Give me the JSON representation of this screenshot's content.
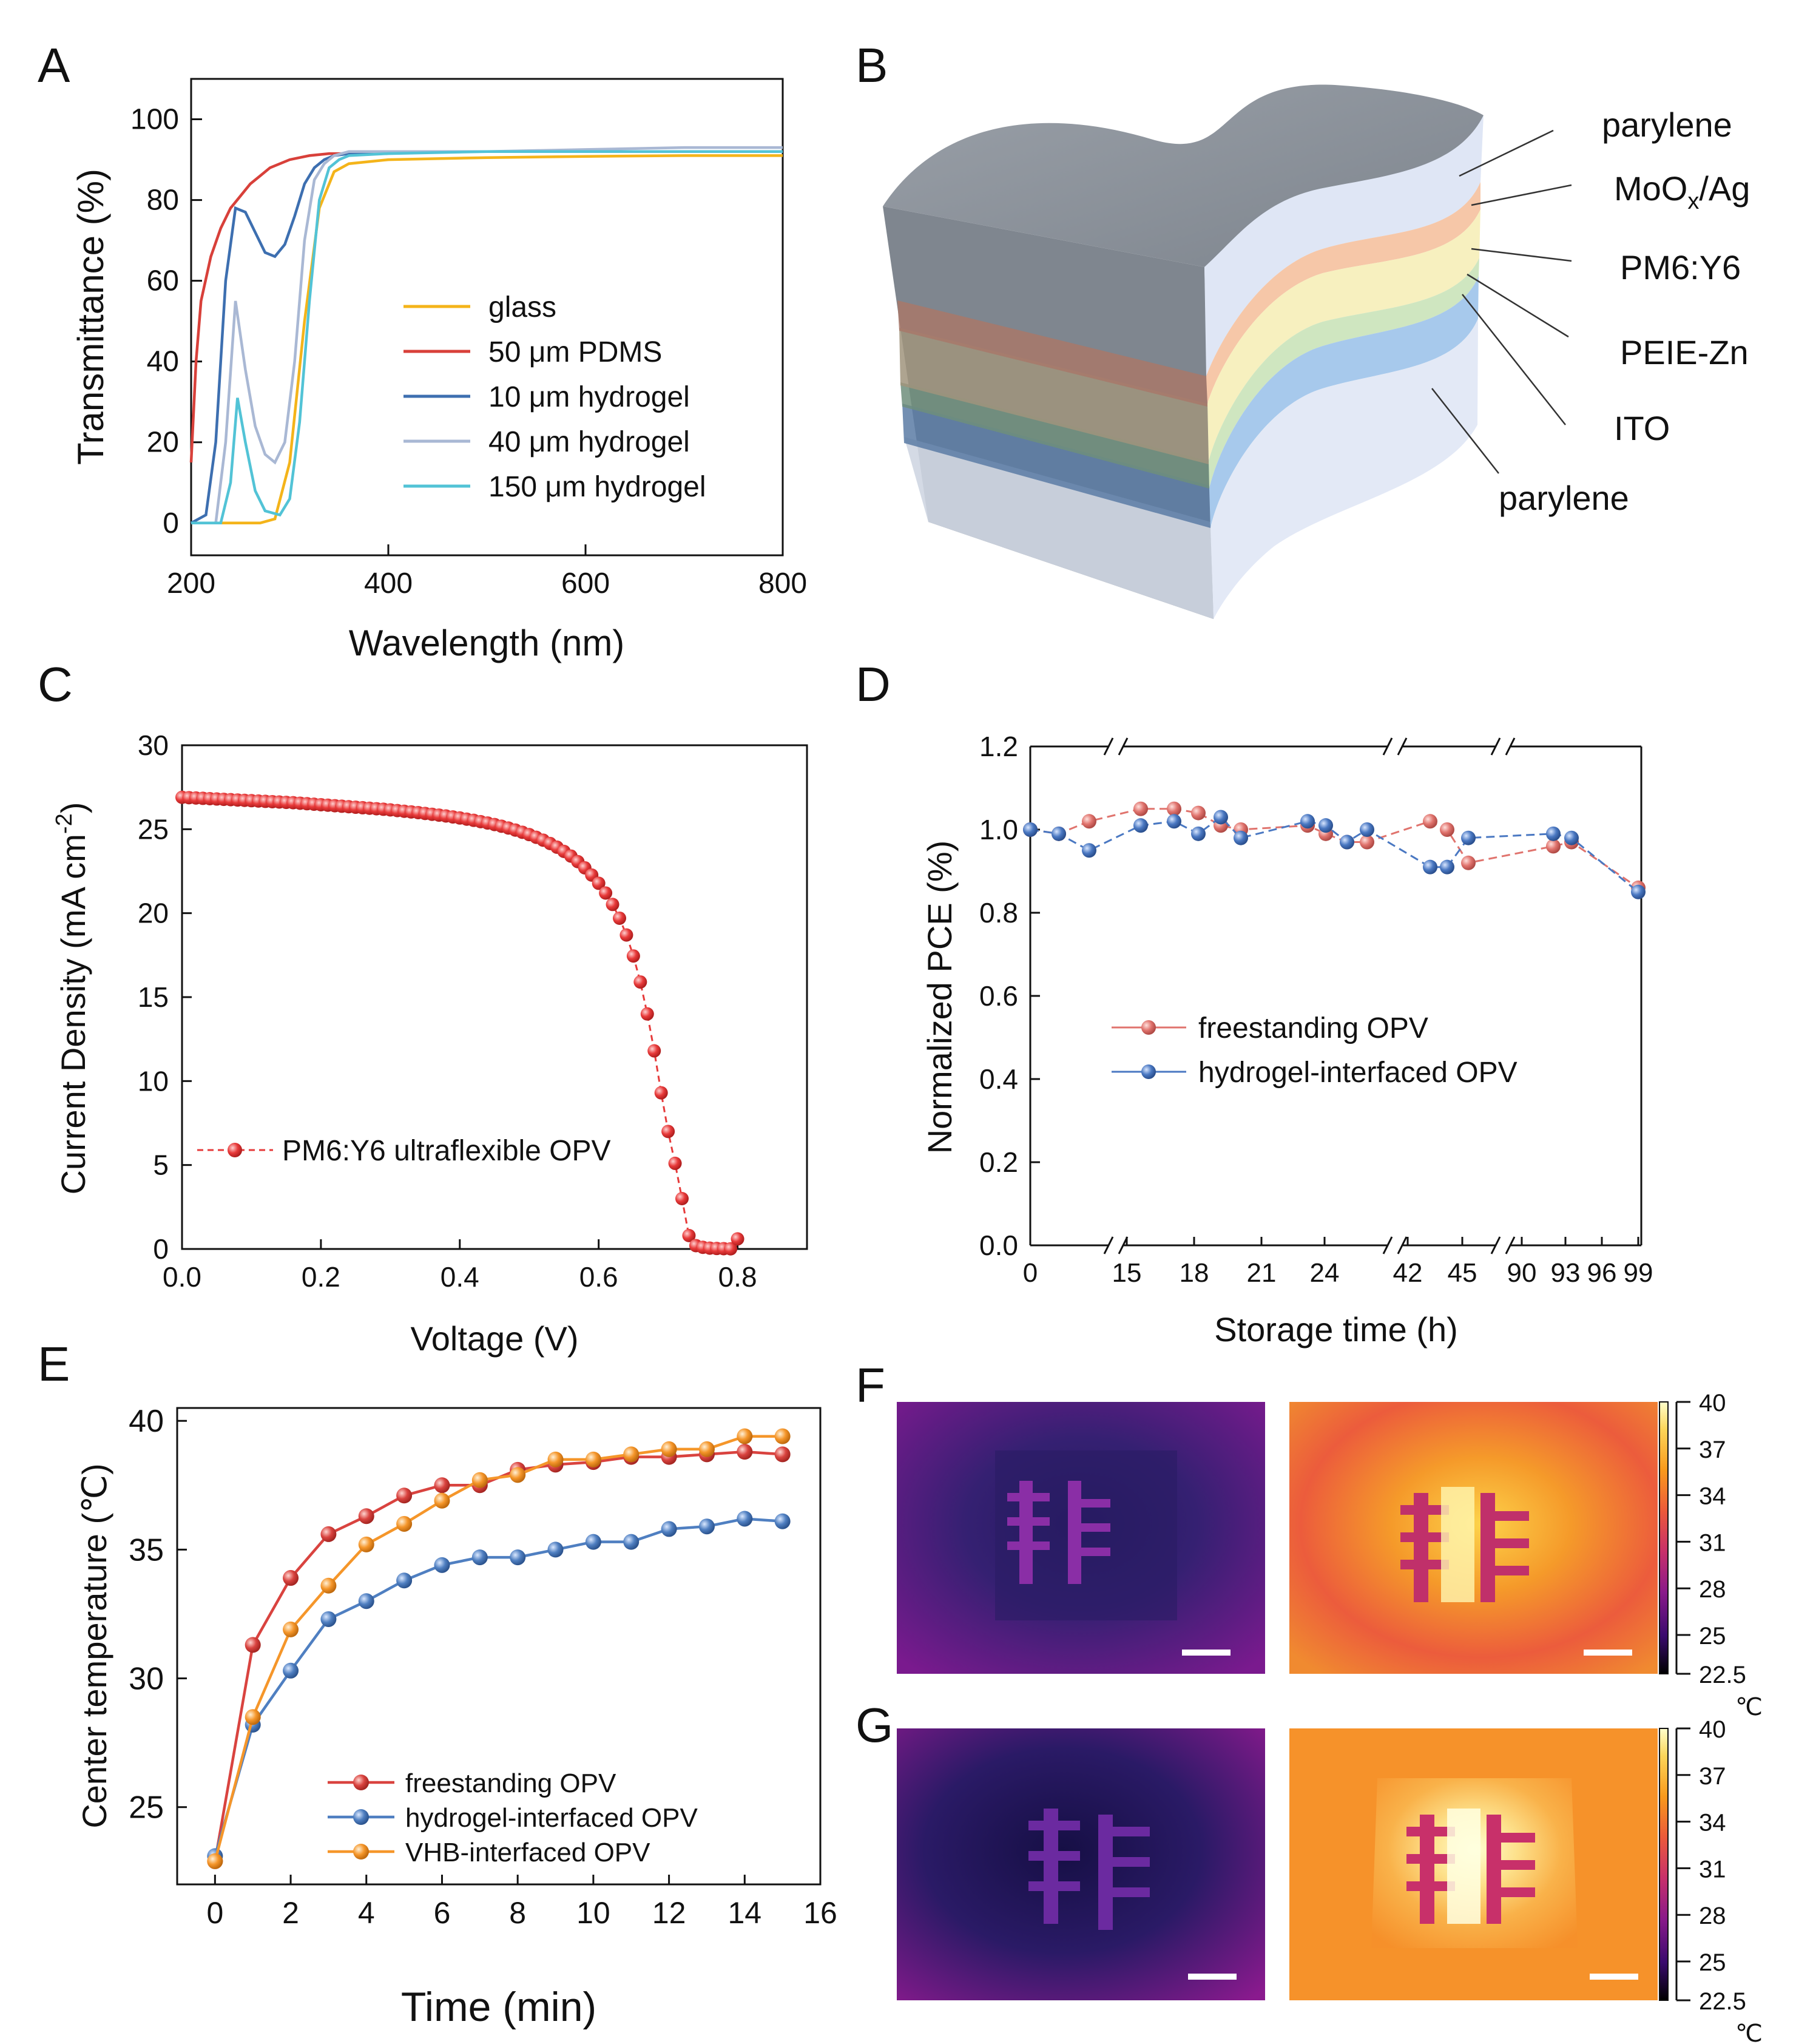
{
  "panels": {
    "A": "A",
    "B": "B",
    "C": "C",
    "D": "D",
    "E": "E",
    "F": "F",
    "G": "G"
  },
  "chart_data": [
    {
      "id": "A",
      "type": "line",
      "xlabel": "Wavelength (nm)",
      "ylabel": "Transmittance (%)",
      "xlim": [
        200,
        800
      ],
      "ylim": [
        -8,
        110
      ],
      "xticks": [
        200,
        400,
        600,
        800
      ],
      "yticks": [
        0,
        20,
        40,
        60,
        80,
        100
      ],
      "legend_position": "center-right",
      "series": [
        {
          "name": "glass",
          "color": "#f4b41a",
          "x": [
            200,
            240,
            270,
            285,
            300,
            315,
            330,
            345,
            360,
            400,
            500,
            600,
            700,
            800
          ],
          "y": [
            0,
            0,
            0,
            1,
            15,
            50,
            78,
            87,
            89,
            90,
            90.5,
            90.8,
            91,
            91
          ]
        },
        {
          "name": "50 μm PDMS",
          "color": "#d8403a",
          "x": [
            200,
            205,
            210,
            220,
            230,
            240,
            250,
            260,
            270,
            280,
            300,
            320,
            340,
            360,
            400,
            500,
            600,
            700,
            800
          ],
          "y": [
            15,
            40,
            55,
            66,
            73,
            78,
            81,
            84,
            86,
            88,
            90,
            91,
            91.5,
            91.5,
            92,
            92,
            92,
            92,
            92
          ]
        },
        {
          "name": "10 μm hydrogel",
          "color": "#3d6fb0",
          "x": [
            200,
            215,
            225,
            235,
            245,
            255,
            265,
            275,
            285,
            295,
            305,
            315,
            325,
            335,
            345,
            360,
            400,
            500,
            600,
            700,
            800
          ],
          "y": [
            0,
            2,
            20,
            60,
            78,
            77,
            72,
            67,
            66,
            69,
            76,
            84,
            88,
            90,
            91,
            91.5,
            92,
            92,
            92,
            92,
            92
          ]
        },
        {
          "name": "40 μm hydrogel",
          "color": "#a9b8d4",
          "x": [
            200,
            225,
            235,
            245,
            255,
            265,
            275,
            285,
            295,
            305,
            315,
            325,
            335,
            345,
            360,
            400,
            500,
            600,
            700,
            800
          ],
          "y": [
            0,
            0,
            20,
            55,
            38,
            24,
            17,
            15,
            20,
            40,
            70,
            85,
            89,
            91,
            92,
            92,
            92,
            92.5,
            93,
            93
          ]
        },
        {
          "name": "150 μm hydrogel",
          "color": "#52c3d6",
          "x": [
            200,
            230,
            240,
            247,
            255,
            265,
            275,
            290,
            300,
            310,
            320,
            330,
            340,
            350,
            360,
            400,
            500,
            600,
            700,
            800
          ],
          "y": [
            0,
            0,
            10,
            31,
            20,
            8,
            3,
            2,
            6,
            25,
            55,
            80,
            88,
            90,
            91,
            91.5,
            92,
            92,
            92,
            92
          ]
        }
      ]
    },
    {
      "id": "B",
      "type": "diagram",
      "layers": [
        {
          "label": "parylene",
          "color": "#dfe6f5"
        },
        {
          "label": "MoOx/Ag",
          "color": "#f6c7a8"
        },
        {
          "label": "PM6:Y6",
          "color": "#f7f0bf"
        },
        {
          "label": "PEIE-Zn",
          "color": "#cfe6c0"
        },
        {
          "label": "ITO",
          "color": "#a7c9ec"
        },
        {
          "label": "parylene",
          "color": "#dfe6f5"
        }
      ]
    },
    {
      "id": "C",
      "type": "scatter",
      "xlabel": "Voltage (V)",
      "ylabel": "Current Density (mA cm",
      "ylabel_sup": "-2",
      "ylabel_end": ")",
      "xlim": [
        0,
        0.9
      ],
      "ylim": [
        0,
        30
      ],
      "xticks": [
        "0.0",
        "0.2",
        "0.4",
        "0.6",
        "0.8"
      ],
      "yticks": [
        0,
        5,
        10,
        15,
        20,
        25,
        30
      ],
      "legend_position": "lower-left",
      "series": [
        {
          "name": "PM6:Y6 ultraflexible OPV",
          "color": "#e63a3a",
          "x": [
            0.0,
            0.01,
            0.02,
            0.03,
            0.04,
            0.05,
            0.06,
            0.07,
            0.08,
            0.09,
            0.1,
            0.11,
            0.12,
            0.13,
            0.14,
            0.15,
            0.16,
            0.17,
            0.18,
            0.19,
            0.2,
            0.21,
            0.22,
            0.23,
            0.24,
            0.25,
            0.26,
            0.27,
            0.28,
            0.29,
            0.3,
            0.31,
            0.32,
            0.33,
            0.34,
            0.35,
            0.36,
            0.37,
            0.38,
            0.39,
            0.4,
            0.41,
            0.42,
            0.43,
            0.44,
            0.45,
            0.46,
            0.47,
            0.48,
            0.49,
            0.5,
            0.51,
            0.52,
            0.53,
            0.54,
            0.55,
            0.56,
            0.57,
            0.58,
            0.59,
            0.6,
            0.61,
            0.62,
            0.63,
            0.64,
            0.65,
            0.66,
            0.67,
            0.68,
            0.69,
            0.7,
            0.71,
            0.72,
            0.73,
            0.74,
            0.75,
            0.76,
            0.77,
            0.78,
            0.79,
            0.8
          ],
          "y": [
            26.9,
            26.88,
            26.86,
            26.84,
            26.82,
            26.8,
            26.78,
            26.76,
            26.74,
            26.72,
            26.7,
            26.68,
            26.66,
            26.64,
            26.62,
            26.6,
            26.58,
            26.55,
            26.52,
            26.49,
            26.46,
            26.43,
            26.4,
            26.37,
            26.34,
            26.31,
            26.28,
            26.25,
            26.22,
            26.19,
            26.15,
            26.11,
            26.07,
            26.03,
            25.99,
            25.94,
            25.89,
            25.84,
            25.79,
            25.73,
            25.67,
            25.6,
            25.53,
            25.45,
            25.37,
            25.28,
            25.18,
            25.07,
            24.95,
            24.82,
            24.68,
            24.52,
            24.35,
            24.15,
            23.93,
            23.68,
            23.4,
            23.07,
            22.7,
            22.27,
            21.78,
            21.2,
            20.52,
            19.7,
            18.7,
            17.45,
            15.9,
            14.0,
            11.8,
            9.3,
            7.0,
            5.1,
            3.0,
            0.8,
            0.2,
            0.1,
            0.05,
            0.03,
            0.02,
            0.01,
            0.6
          ]
        }
      ]
    },
    {
      "id": "D",
      "type": "line",
      "xlabel": "Storage time (h)",
      "ylabel": "Normalized PCE (%)",
      "ylim": [
        0,
        1.2
      ],
      "yticks": [
        "0.0",
        "0.2",
        "0.4",
        "0.6",
        "0.8",
        "1.0",
        "1.2"
      ],
      "xtick_labels": [
        "0",
        "15",
        "18",
        "21",
        "24",
        "42",
        "45",
        "90",
        "93",
        "96",
        "99"
      ],
      "legend_position": "center",
      "series": [
        {
          "name": "freestanding OPV",
          "color": "#e0736d",
          "x": [
            "0",
            "1",
            "2",
            "16",
            "17",
            "18",
            "19",
            "20",
            "23",
            "24",
            "25",
            "26",
            "43",
            "44",
            "45",
            "92",
            "94",
            "99"
          ],
          "y": [
            1.0,
            0.99,
            1.02,
            1.05,
            1.05,
            1.04,
            1.01,
            1.0,
            1.01,
            0.99,
            0.97,
            0.97,
            1.02,
            1.0,
            0.92,
            0.96,
            0.97,
            0.86
          ]
        },
        {
          "name": "hydrogel-interfaced OPV",
          "color": "#4a78c2",
          "x": [
            "0",
            "1",
            "2",
            "16",
            "17",
            "18",
            "19",
            "20",
            "23",
            "24",
            "25",
            "26",
            "43",
            "44",
            "45",
            "92",
            "94",
            "99"
          ],
          "y": [
            1.0,
            0.99,
            0.95,
            1.01,
            1.02,
            0.99,
            1.03,
            0.98,
            1.02,
            1.01,
            0.97,
            1.0,
            0.91,
            0.91,
            0.98,
            0.99,
            0.98,
            0.85
          ]
        }
      ]
    },
    {
      "id": "E",
      "type": "line",
      "xlabel": "Time (min)",
      "ylabel": "Center temperature (℃)",
      "xlim": [
        -1,
        16
      ],
      "ylim": [
        22,
        40.5
      ],
      "xticks": [
        0,
        2,
        4,
        6,
        8,
        10,
        12,
        14,
        16
      ],
      "yticks": [
        25,
        30,
        35,
        40
      ],
      "legend_position": "lower-center",
      "series": [
        {
          "name": "freestanding OPV",
          "color": "#d9433f",
          "x": [
            0,
            1,
            2,
            3,
            4,
            5,
            6,
            7,
            8,
            9,
            10,
            11,
            12,
            13,
            14,
            15
          ],
          "y": [
            22.9,
            31.3,
            33.9,
            35.6,
            36.3,
            37.1,
            37.5,
            37.5,
            38.1,
            38.3,
            38.4,
            38.6,
            38.6,
            38.7,
            38.8,
            38.7
          ]
        },
        {
          "name": "hydrogel-interfaced OPV",
          "color": "#4f7fc1",
          "x": [
            0,
            1,
            2,
            3,
            4,
            5,
            6,
            7,
            8,
            9,
            10,
            11,
            12,
            13,
            14,
            15
          ],
          "y": [
            23.1,
            28.2,
            30.3,
            32.3,
            33.0,
            33.8,
            34.4,
            34.7,
            34.7,
            35.0,
            35.3,
            35.3,
            35.8,
            35.9,
            36.2,
            36.1
          ]
        },
        {
          "name": "VHB-interfaced OPV",
          "color": "#f5962a",
          "x": [
            0,
            1,
            2,
            3,
            4,
            5,
            6,
            7,
            8,
            9,
            10,
            11,
            12,
            13,
            14,
            15
          ],
          "y": [
            22.9,
            28.5,
            31.9,
            33.6,
            35.2,
            36.0,
            36.9,
            37.7,
            37.9,
            38.5,
            38.5,
            38.7,
            38.9,
            38.9,
            39.4,
            39.4
          ]
        }
      ]
    },
    {
      "id": "colorbar",
      "type": "heatmap",
      "unit": "℃",
      "ticks": [
        "40",
        "37",
        "34",
        "31",
        "28",
        "25",
        "22.5"
      ],
      "colors": [
        "#000000",
        "#3a0a6e",
        "#8a1a8a",
        "#c8306a",
        "#ec5a3a",
        "#f99a1c",
        "#fcd65a",
        "#ffffcc"
      ]
    }
  ]
}
